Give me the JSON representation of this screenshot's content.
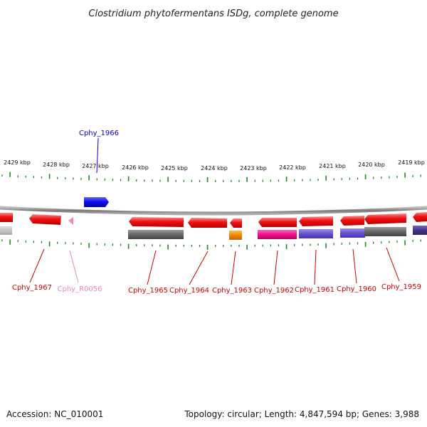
{
  "title": "Clostridium phytofermentans ISDg, complete genome",
  "footer": {
    "accession": "Accession: NC_010001",
    "stats": "Topology: circular; Length: 4,847,594 bp; Genes: 3,988"
  },
  "scale_labels": [
    "2429 kbp",
    "2428 kbp",
    "2427 kbp",
    "2426 kbp",
    "2425 kbp",
    "2424 kbp",
    "2423 kbp",
    "2422 kbp",
    "2421 kbp",
    "2420 kbp",
    "2419 kbp"
  ],
  "genes": [
    {
      "label": "Cphy_1966",
      "color": "#0000cc"
    },
    {
      "label": "Cphy_1967",
      "color": "#cc0000"
    },
    {
      "label": "Cphy_R0056",
      "color": "#ee88bb"
    },
    {
      "label": "Cphy_1965",
      "color": "#cc0000"
    },
    {
      "label": "Cphy_1964",
      "color": "#cc0000"
    },
    {
      "label": "Cphy_1963",
      "color": "#cc0000"
    },
    {
      "label": "Cphy_1962",
      "color": "#cc0000"
    },
    {
      "label": "Cphy_1961",
      "color": "#cc0000"
    },
    {
      "label": "Cphy_1960",
      "color": "#cc0000"
    },
    {
      "label": "Cphy_1959",
      "color": "#cc0000"
    }
  ],
  "colors": {
    "cds": "#ee1111",
    "forward_cds": "#1111ee",
    "rna": "#ee88bb",
    "backbone": "#888888",
    "ticks": "#228822",
    "cog_grey": "#666666",
    "cog_orange": "#ee8800",
    "cog_magenta": "#ee1188",
    "cog_purple": "#6655cc",
    "cog_navy": "#443388"
  }
}
